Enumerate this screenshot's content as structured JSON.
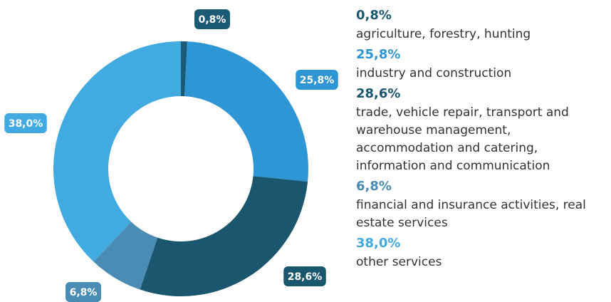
{
  "chart_data": {
    "type": "pie",
    "donut": true,
    "categories": [
      "agriculture, forestry, hunting",
      "industry and construction",
      "trade, vehicle repair, transport and warehouse management, accommodation and catering, information and communication",
      "financial and insurance activities, real estate services",
      "other services"
    ],
    "values": [
      0.8,
      25.8,
      28.6,
      6.8,
      38.0
    ],
    "value_labels": [
      "0,8%",
      "25,8%",
      "28,6%",
      "6,8%",
      "38,0%"
    ],
    "colors": [
      "#1b5a74",
      "#2e96d4",
      "#1a566e",
      "#4a8cb3",
      "#40aae1"
    ]
  }
}
